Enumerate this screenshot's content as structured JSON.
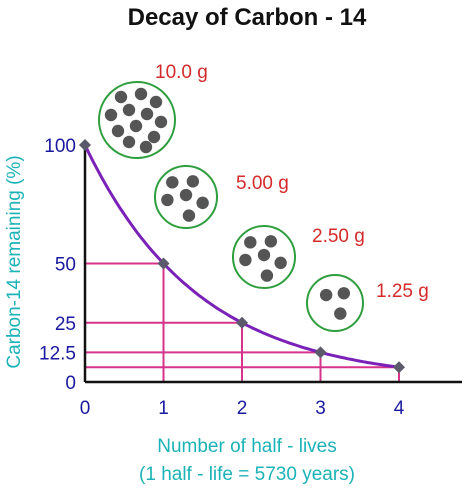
{
  "chart_data": {
    "type": "line",
    "title": "Decay of Carbon - 14",
    "xlabel": "Number of half - lives",
    "xlabel_sub": "(1 half - life = 5730 years)",
    "ylabel": "Carbon-14 remaining (%)",
    "x_ticks": [
      "0",
      "1",
      "2",
      "3",
      "4"
    ],
    "y_ticks": [
      {
        "value": 0,
        "label": "0"
      },
      {
        "value": 12.5,
        "label": "12.5"
      },
      {
        "value": 25,
        "label": "25"
      },
      {
        "value": 50,
        "label": "50"
      },
      {
        "value": 100,
        "label": "100"
      }
    ],
    "xlim": [
      0,
      4.3
    ],
    "ylim": [
      0,
      100
    ],
    "points": [
      {
        "x": 0,
        "y": 100
      },
      {
        "x": 1,
        "y": 50
      },
      {
        "x": 2,
        "y": 25
      },
      {
        "x": 3,
        "y": 12.5
      },
      {
        "x": 4,
        "y": 6.25
      }
    ],
    "annotations": [
      {
        "text": "10.0 g",
        "atoms": 12
      },
      {
        "text": "5.00 g",
        "atoms": 6
      },
      {
        "text": "2.50 g",
        "atoms": 6
      },
      {
        "text": "1.25 g",
        "atoms": 3
      }
    ],
    "colors": {
      "curve": "#7a22b8",
      "guide": "#d6338a",
      "axis_label": "#1cb3b8",
      "tick": "#1a1aa0",
      "mass_label": "#d42a2a",
      "circle": "#2e9e3e",
      "atom": "#555555",
      "point": "#5a5a6a"
    }
  }
}
